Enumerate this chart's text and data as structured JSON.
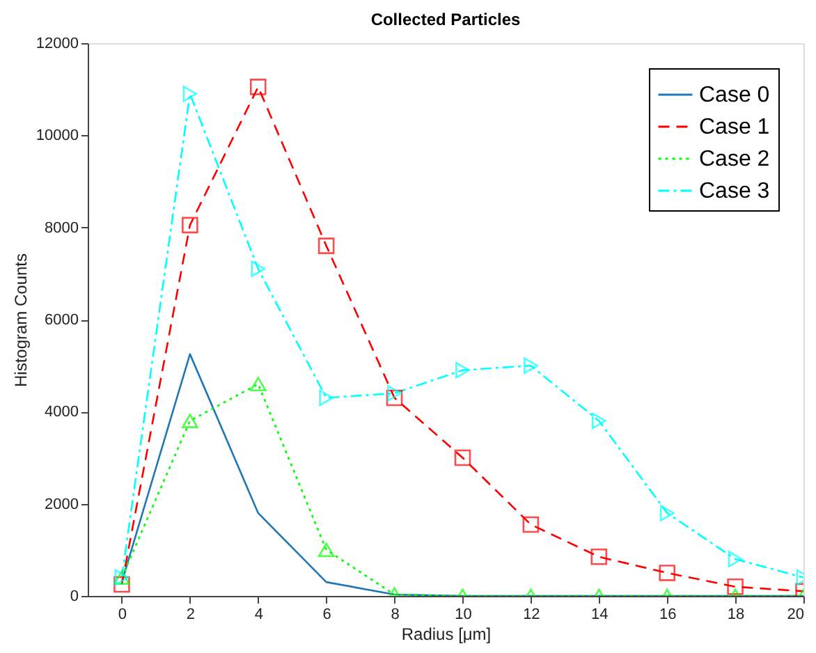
{
  "chart_data": {
    "type": "line",
    "title": "Collected Particles",
    "xlabel": "Radius [μm]",
    "ylabel": "Histogram Counts",
    "x": [
      0,
      2,
      4,
      6,
      8,
      10,
      12,
      14,
      16,
      18,
      20
    ],
    "xlim": [
      -1,
      20
    ],
    "xticks": [
      0,
      2,
      4,
      6,
      8,
      10,
      12,
      14,
      16,
      18,
      20
    ],
    "ylim": [
      0,
      12000
    ],
    "yticks": [
      0,
      2000,
      4000,
      6000,
      8000,
      10000,
      12000
    ],
    "legend": "top right",
    "grid": false,
    "series": [
      {
        "name": "Case 0",
        "color": "#1f77b4",
        "marker": "none",
        "line_style": "solid",
        "values": [
          300,
          5250,
          1800,
          300,
          30,
          0,
          0,
          0,
          0,
          0,
          0
        ]
      },
      {
        "name": "Case 1",
        "color": "#ff0000",
        "marker": "square",
        "line_style": "dashed",
        "values": [
          250,
          8050,
          11050,
          7600,
          4300,
          3000,
          1550,
          850,
          500,
          200,
          100
        ]
      },
      {
        "name": "Case 2",
        "color": "#00ff00",
        "marker": "triangle",
        "line_style": "dotted",
        "values": [
          400,
          3800,
          4600,
          1000,
          30,
          0,
          0,
          0,
          0,
          0,
          0
        ]
      },
      {
        "name": "Case 3",
        "color": "#00ffff",
        "marker": "triangle-right",
        "line_style": "dashdot",
        "values": [
          400,
          10900,
          7100,
          4300,
          4400,
          4900,
          5000,
          3800,
          1800,
          800,
          400
        ]
      }
    ]
  }
}
